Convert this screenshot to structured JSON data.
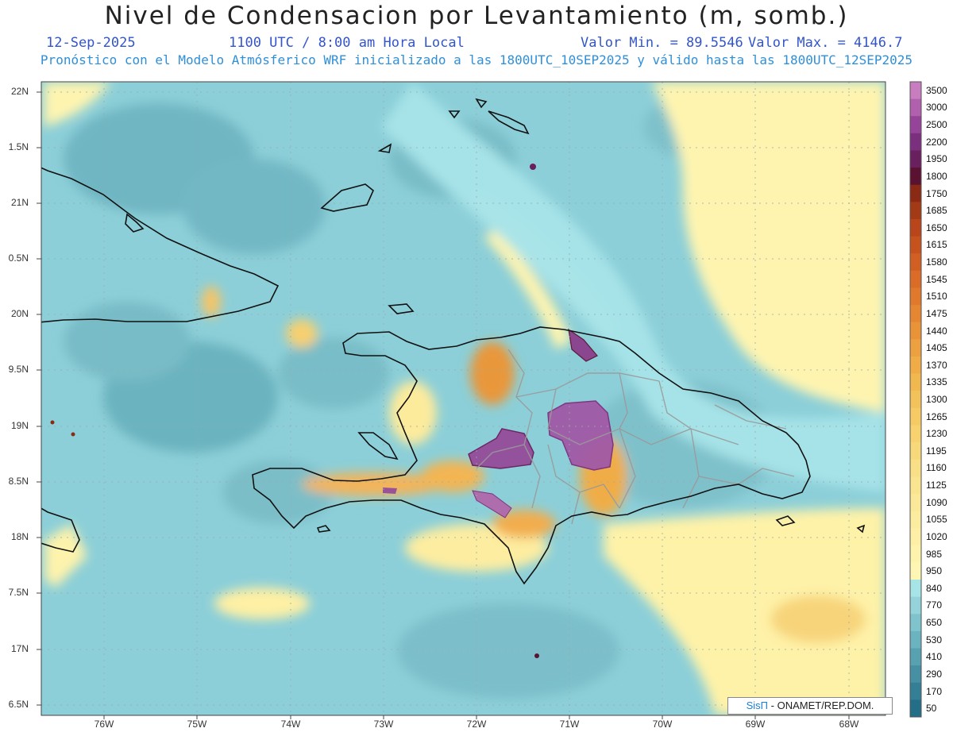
{
  "header": {
    "title": "Nivel de Condensacion por Levantamiento (m, somb.)",
    "date": "12-Sep-2025",
    "time": "1100 UTC / 8:00 am Hora Local",
    "valor_min": "Valor Min. = 89.5546",
    "valor_max": "Valor Max. = 4146.7",
    "model_info": "Pronóstico con el Modelo Atmósferico WRF inicializado a las 1800UTC_10SEP2025 y válido hasta las  1800UTC_12SEP2025"
  },
  "axes": {
    "lat_labels": [
      "22N",
      "1.5N",
      "21N",
      "0.5N",
      "20N",
      "9.5N",
      "19N",
      "8.5N",
      "18N",
      "7.5N",
      "17N",
      "6.5N"
    ],
    "lon_labels": [
      "76W",
      "75W",
      "74W",
      "73W",
      "72W",
      "71W",
      "70W",
      "69W",
      "68W"
    ]
  },
  "colorbar": {
    "labels": [
      "3500",
      "3000",
      "2500",
      "2200",
      "1950",
      "1800",
      "1750",
      "1685",
      "1650",
      "1615",
      "1580",
      "1545",
      "1510",
      "1475",
      "1440",
      "1405",
      "1370",
      "1335",
      "1300",
      "1265",
      "1230",
      "1195",
      "1160",
      "1125",
      "1090",
      "1055",
      "1020",
      "985",
      "950",
      "840",
      "770",
      "650",
      "530",
      "410",
      "290",
      "170",
      "50"
    ],
    "colors": [
      "#c77dc0",
      "#b060ad",
      "#95449a",
      "#7c2f7e",
      "#6a1f5e",
      "#5b1230",
      "#8a2a14",
      "#a33a16",
      "#b8461a",
      "#c6521e",
      "#d25f22",
      "#da6c27",
      "#e0792c",
      "#e58632",
      "#e99338",
      "#eda03f",
      "#f0ad47",
      "#f2b850",
      "#f4c25a",
      "#f6cb65",
      "#f7d26f",
      "#f8d97a",
      "#f9df85",
      "#fae48f",
      "#fbe898",
      "#fcec9f",
      "#fdf0a6",
      "#fdf3ac",
      "#fef6b2",
      "#a6e4e8",
      "#93d3d9",
      "#7fc3cc",
      "#6cb3c0",
      "#58a1b1",
      "#4790a4",
      "#357f96",
      "#246e88"
    ]
  },
  "credit": {
    "sis": "SisΠ",
    "text": "- ONAMET/REP.DOM."
  }
}
